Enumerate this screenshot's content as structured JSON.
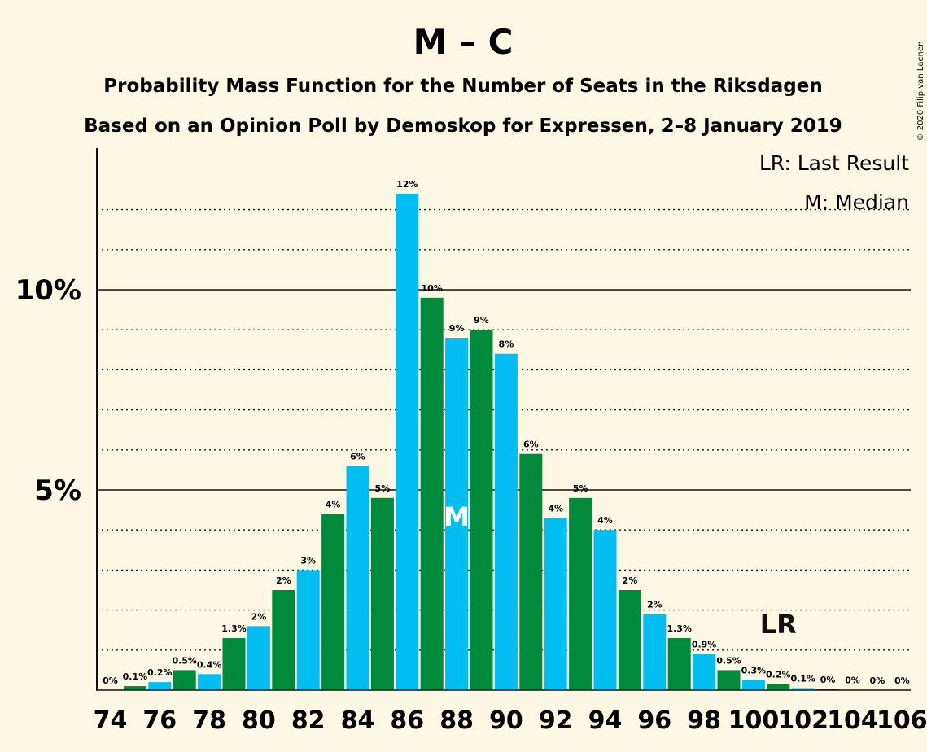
{
  "copyright": "© 2020 Filip van Laenen",
  "chart_data": {
    "type": "bar",
    "title": "M – C",
    "subtitle": "Probability Mass Function for the Number of Seats in the Riksdagen",
    "subtitle2": "Based on an Opinion Poll by Demoskop for Expressen, 2–8 January 2019",
    "legend": [
      "LR: Last Result",
      "M: Median"
    ],
    "legend_position": "top-right",
    "ylim": [
      0,
      13.5
    ],
    "y_major_ticks": [
      {
        "value": 5,
        "label": "5%"
      },
      {
        "value": 10,
        "label": "10%"
      }
    ],
    "y_minor_ticks": [
      1,
      2,
      3,
      4,
      6,
      7,
      8,
      9,
      11,
      12
    ],
    "x_tick_labels": [
      "74",
      "76",
      "78",
      "80",
      "82",
      "84",
      "86",
      "88",
      "90",
      "92",
      "94",
      "96",
      "98",
      "100",
      "102",
      "104",
      "106"
    ],
    "seats": [
      74,
      75,
      76,
      77,
      78,
      79,
      80,
      81,
      82,
      83,
      84,
      85,
      86,
      87,
      88,
      89,
      90,
      91,
      92,
      93,
      94,
      95,
      96,
      97,
      98,
      99,
      100,
      101,
      102,
      103,
      104,
      105,
      106
    ],
    "values": [
      0,
      0.1,
      0.2,
      0.5,
      0.4,
      1.3,
      1.6,
      2.5,
      3.0,
      4.4,
      5.6,
      4.8,
      12.4,
      9.8,
      8.8,
      9.0,
      8.4,
      5.9,
      4.3,
      4.8,
      4.0,
      2.5,
      1.9,
      1.3,
      0.9,
      0.5,
      0.25,
      0.15,
      0.05,
      0.02,
      0.01,
      0,
      0
    ],
    "labels": [
      "0%",
      "0.1%",
      "0.2%",
      "0.5%",
      "0.4%",
      "1.3%",
      "2%",
      "2%",
      "3%",
      "4%",
      "6%",
      "5%",
      "12%",
      "10%",
      "9%",
      "9%",
      "8%",
      "6%",
      "4%",
      "5%",
      "4%",
      "2%",
      "2%",
      "1.3%",
      "0.9%",
      "0.5%",
      "0.3%",
      "0.2%",
      "0.1%",
      "0%",
      "0%",
      "0%",
      "0%"
    ],
    "median": {
      "seat": 88,
      "label": "M"
    },
    "last_result": {
      "seat": 101,
      "label": "LR"
    },
    "colors": {
      "blue": "#00bdf2",
      "green": "#008a3c",
      "background": "#fdf8e4",
      "text": "#111111"
    }
  }
}
